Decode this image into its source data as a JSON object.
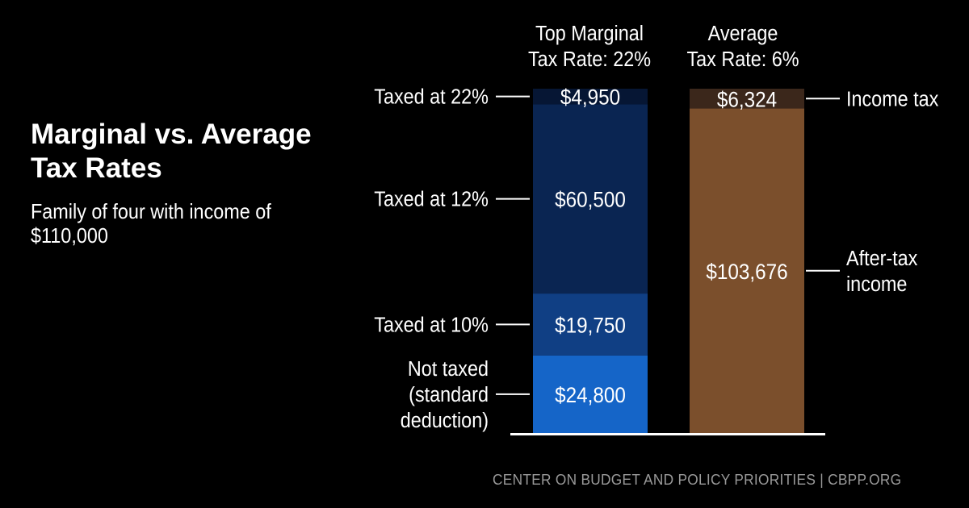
{
  "header": {
    "title": "Marginal vs. Average Tax Rates",
    "subtitle": "Family of four with income of $110,000"
  },
  "footer": {
    "credit": "CENTER ON BUDGET AND POLICY PRIORITIES | CBPP.ORG"
  },
  "chart_data": {
    "type": "bar",
    "stacked": true,
    "bars": [
      {
        "heading": [
          "Top Marginal",
          "Tax Rate: 22%"
        ],
        "segments": [
          {
            "value": 24800,
            "value_label": "$24,800",
            "side_label": [
              "Not taxed",
              "(standard",
              "deduction)"
            ],
            "color": "#1565c8"
          },
          {
            "value": 19750,
            "value_label": "$19,750",
            "side_label": [
              "Taxed at 10%"
            ],
            "color": "#103f84"
          },
          {
            "value": 60500,
            "value_label": "$60,500",
            "side_label": [
              "Taxed at 12%"
            ],
            "color": "#0a2552"
          },
          {
            "value": 4950,
            "value_label": "$4,950",
            "side_label": [
              "Taxed at 22%"
            ],
            "color": "#061634"
          }
        ]
      },
      {
        "heading": [
          "Average",
          "Tax Rate: 6%"
        ],
        "segments": [
          {
            "value": 103676,
            "value_label": "$103,676",
            "side_label": [
              "After-tax",
              "income"
            ],
            "color": "#7b4f2c"
          },
          {
            "value": 6324,
            "value_label": "$6,324",
            "side_label": [
              "Income tax"
            ],
            "color": "#3b271b"
          }
        ]
      }
    ],
    "total": 110000
  }
}
